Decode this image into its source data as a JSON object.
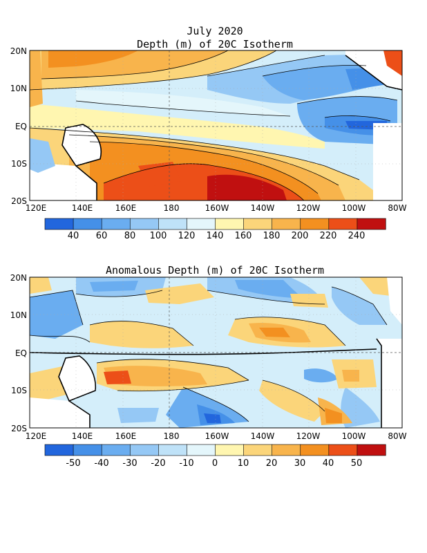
{
  "chart_data": [
    {
      "type": "heatmap",
      "title": "July 2020",
      "subtitle": "Depth (m) of 20C Isotherm",
      "x_ticks": [
        "120E",
        "140E",
        "160E",
        "180",
        "160W",
        "140W",
        "120W",
        "100W",
        "80W"
      ],
      "y_ticks": [
        "20N",
        "10N",
        "EQ",
        "10S",
        "20S"
      ],
      "xlim": [
        "120E",
        "80W"
      ],
      "ylim": [
        "20S",
        "20N"
      ],
      "grid": "dashed",
      "colorbar": {
        "labels": [
          "40",
          "60",
          "80",
          "100",
          "120",
          "140",
          "160",
          "180",
          "200",
          "220",
          "240"
        ],
        "colors": [
          "#2266dd",
          "#4590e8",
          "#6aadf0",
          "#95c8f5",
          "#bfe2f8",
          "#e4f6fb",
          "#fff6b0",
          "#fbd57a",
          "#f8b44c",
          "#f39020",
          "#ec4f18",
          "#c01010"
        ]
      }
    },
    {
      "type": "heatmap",
      "title": "Anomalous Depth (m) of 20C Isotherm",
      "x_ticks": [
        "120E",
        "140E",
        "160E",
        "180",
        "160W",
        "140W",
        "120W",
        "100W",
        "80W"
      ],
      "y_ticks": [
        "20N",
        "10N",
        "EQ",
        "10S",
        "20S"
      ],
      "xlim": [
        "120E",
        "80W"
      ],
      "ylim": [
        "20S",
        "20N"
      ],
      "grid": "dashed",
      "colorbar": {
        "labels": [
          "-50",
          "-40",
          "-30",
          "-20",
          "-10",
          "0",
          "10",
          "20",
          "30",
          "40",
          "50"
        ],
        "colors": [
          "#2266dd",
          "#4590e8",
          "#6aadf0",
          "#95c8f5",
          "#bfe2f8",
          "#e4f6fb",
          "#fff6b0",
          "#fbd57a",
          "#f8b44c",
          "#f39020",
          "#ec4f18",
          "#c01010"
        ]
      }
    }
  ]
}
